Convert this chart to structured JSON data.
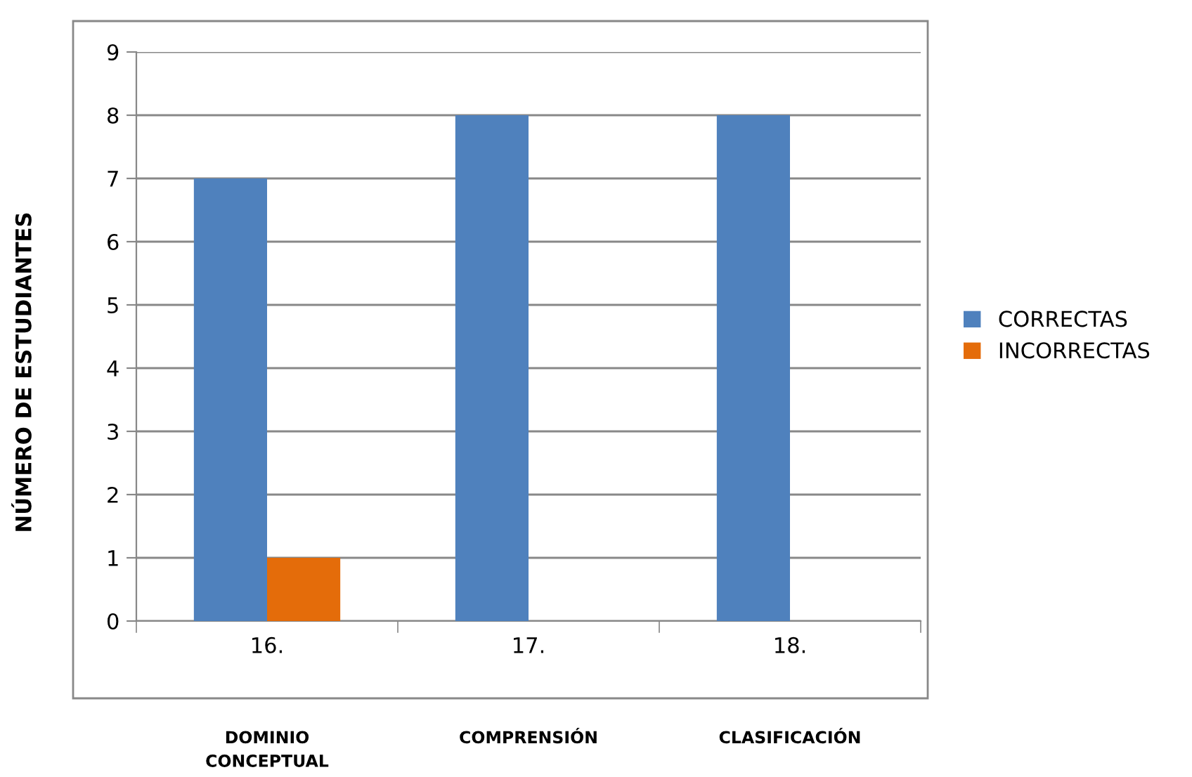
{
  "chart_data": {
    "type": "bar",
    "ylabel": "NÚMERO DE ESTUDIANTES",
    "categories": [
      "16.",
      "17.",
      "18."
    ],
    "series": [
      {
        "name": "CORRECTAS",
        "color": "#4f81bd",
        "values": [
          7,
          8,
          8
        ]
      },
      {
        "name": "INCORRECTAS",
        "color": "#e46c0a",
        "values": [
          1,
          0,
          0
        ]
      }
    ],
    "ylim": [
      0,
      9
    ],
    "yticks": [
      0,
      1,
      2,
      3,
      4,
      5,
      6,
      7,
      8,
      9
    ],
    "grid": "y",
    "legend": "right",
    "annotations": [
      "DOMINIO\nCONCEPTUAL",
      "COMPRENSIÓN",
      "CLASIFICACIÓN"
    ]
  }
}
